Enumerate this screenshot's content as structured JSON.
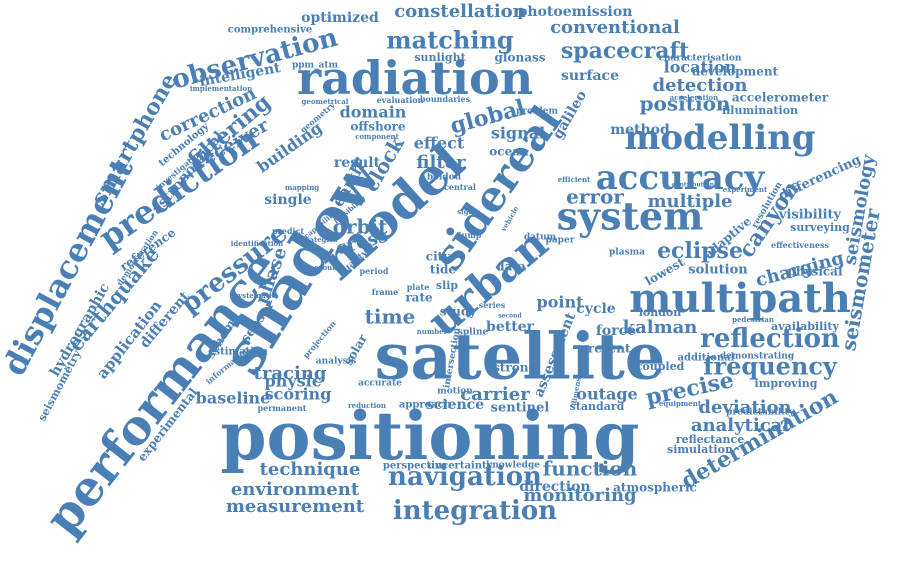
{
  "colors": {
    "primary": "#4a7fb5",
    "secondary": "#5b8cc0",
    "background": "#ffffff"
  },
  "words": [
    {
      "text": "positioning",
      "color": "#4a7fb5"
    },
    {
      "text": "satellite",
      "color": "#4a7fb5"
    },
    {
      "text": "shadow",
      "color": "#4a7fb5"
    },
    {
      "text": "performance",
      "color": "#4a7fb5"
    },
    {
      "text": "model",
      "color": "#4a7fb5"
    },
    {
      "text": "radiation",
      "color": "#4a7fb5"
    },
    {
      "text": "urban",
      "color": "#4a7fb5"
    },
    {
      "text": "sidereal",
      "color": "#4a7fb5"
    },
    {
      "text": "multipath",
      "color": "#4a7fb5"
    },
    {
      "text": "system",
      "color": "#4a7fb5"
    },
    {
      "text": "displacement",
      "color": "#4a7fb5"
    },
    {
      "text": "prediction",
      "color": "#4a7fb5"
    },
    {
      "text": "modelling",
      "color": "#4a7fb5"
    },
    {
      "text": "accuracy",
      "color": "#4a7fb5"
    },
    {
      "text": "navigation",
      "color": "#4a7fb5"
    },
    {
      "text": "integration",
      "color": "#4a7fb5"
    },
    {
      "text": "observation",
      "color": "#4a7fb5"
    },
    {
      "text": "matching",
      "color": "#4a7fb5"
    },
    {
      "text": "spacecraft",
      "color": "#4a7fb5"
    },
    {
      "text": "pressure",
      "color": "#4a7fb5"
    },
    {
      "text": "reflection",
      "color": "#4a7fb5"
    },
    {
      "text": "frequency",
      "color": "#4a7fb5"
    },
    {
      "text": "smartphone",
      "color": "#4a7fb5"
    },
    {
      "text": "filtering",
      "color": "#4a7fb5"
    },
    {
      "text": "constellation",
      "color": "#4a7fb5"
    },
    {
      "text": "conventional",
      "color": "#4a7fb5"
    },
    {
      "text": "seismometer",
      "color": "#4a7fb5"
    },
    {
      "text": "earthquake",
      "color": "#4a7fb5"
    },
    {
      "text": "canyon",
      "color": "#4a7fb5"
    },
    {
      "text": "eclipse",
      "color": "#4a7fb5"
    },
    {
      "text": "precise",
      "color": "#4a7fb5"
    },
    {
      "text": "determination",
      "color": "#4a7fb5"
    },
    {
      "text": "measurement",
      "color": "#4a7fb5"
    },
    {
      "text": "environment",
      "color": "#4a7fb5"
    },
    {
      "text": "technique",
      "color": "#4a7fb5"
    },
    {
      "text": "function",
      "color": "#4a7fb5"
    },
    {
      "text": "monitoring",
      "color": "#4a7fb5"
    },
    {
      "text": "deviation",
      "color": "#4a7fb5"
    },
    {
      "text": "analytical",
      "color": "#4a7fb5"
    },
    {
      "text": "kalman",
      "color": "#4a7fb5"
    },
    {
      "text": "position",
      "color": "#4a7fb5"
    },
    {
      "text": "detection",
      "color": "#4a7fb5"
    },
    {
      "text": "location",
      "color": "#4a7fb5"
    },
    {
      "text": "error",
      "color": "#4a7fb5"
    },
    {
      "text": "multiple",
      "color": "#4a7fb5"
    },
    {
      "text": "global",
      "color": "#4a7fb5"
    },
    {
      "text": "clock",
      "color": "#4a7fb5"
    },
    {
      "text": "orbit",
      "color": "#4a7fb5"
    },
    {
      "text": "time",
      "color": "#4a7fb5"
    },
    {
      "text": "cross",
      "color": "#4a7fb5"
    },
    {
      "text": "correction",
      "color": "#4a7fb5"
    },
    {
      "text": "receiver",
      "color": "#4a7fb5"
    },
    {
      "text": "building",
      "color": "#4a7fb5"
    },
    {
      "text": "phase",
      "color": "#4a7fb5"
    },
    {
      "text": "tracing",
      "color": "#4a7fb5"
    },
    {
      "text": "scoring",
      "color": "#4a7fb5"
    },
    {
      "text": "baseline",
      "color": "#4a7fb5"
    },
    {
      "text": "physic",
      "color": "#4a7fb5"
    },
    {
      "text": "charging",
      "color": "#4a7fb5"
    },
    {
      "text": "seismology",
      "color": "#4a7fb5"
    },
    {
      "text": "point",
      "color": "#4a7fb5"
    },
    {
      "text": "carrier",
      "color": "#4a7fb5"
    },
    {
      "text": "outage",
      "color": "#4a7fb5"
    },
    {
      "text": "effect",
      "color": "#4a7fb5"
    },
    {
      "text": "filter",
      "color": "#4a7fb5"
    },
    {
      "text": "signal",
      "color": "#4a7fb5"
    },
    {
      "text": "domain",
      "color": "#4a7fb5"
    },
    {
      "text": "result",
      "color": "#4a7fb5"
    },
    {
      "text": "surface",
      "color": "#4a7fb5"
    },
    {
      "text": "method",
      "color": "#4a7fb5"
    },
    {
      "text": "intelligent",
      "color": "#4a7fb5"
    },
    {
      "text": "optimized",
      "color": "#4a7fb5"
    },
    {
      "text": "photoemission",
      "color": "#4a7fb5"
    },
    {
      "text": "comprehensive",
      "color": "#4a7fb5"
    },
    {
      "text": "sunlight",
      "color": "#4a7fb5"
    },
    {
      "text": "glonass",
      "color": "#4a7fb5"
    },
    {
      "text": "galileo",
      "color": "#4a7fb5"
    },
    {
      "text": "development",
      "color": "#4a7fb5"
    },
    {
      "text": "characterisation",
      "color": "#4a7fb5"
    },
    {
      "text": "accelerometer",
      "color": "#4a7fb5"
    },
    {
      "text": "illumination",
      "color": "#4a7fb5"
    },
    {
      "text": "differencing",
      "color": "#4a7fb5"
    },
    {
      "text": "visibility",
      "color": "#4a7fb5"
    },
    {
      "text": "surveying",
      "color": "#4a7fb5"
    },
    {
      "text": "physical",
      "color": "#4a7fb5"
    },
    {
      "text": "availability",
      "color": "#4a7fb5"
    },
    {
      "text": "improving",
      "color": "#4a7fb5"
    },
    {
      "text": "simulation",
      "color": "#4a7fb5"
    },
    {
      "text": "reflectance",
      "color": "#4a7fb5"
    },
    {
      "text": "solution",
      "color": "#4a7fb5"
    },
    {
      "text": "lowest",
      "color": "#4a7fb5"
    },
    {
      "text": "adaptive",
      "color": "#4a7fb5"
    },
    {
      "text": "london",
      "color": "#4a7fb5"
    },
    {
      "text": "hydrographic",
      "color": "#4a7fb5"
    },
    {
      "text": "seismometry",
      "color": "#4a7fb5"
    },
    {
      "text": "application",
      "color": "#4a7fb5"
    },
    {
      "text": "different",
      "color": "#4a7fb5"
    },
    {
      "text": "experimental",
      "color": "#4a7fb5"
    },
    {
      "text": "astronomical",
      "color": "#4a7fb5"
    },
    {
      "text": "technology",
      "color": "#4a7fb5"
    },
    {
      "text": "reference",
      "color": "#4a7fb5"
    },
    {
      "text": "science",
      "color": "#4a7fb5"
    },
    {
      "text": "sentinel",
      "color": "#4a7fb5"
    },
    {
      "text": "standard",
      "color": "#4a7fb5"
    },
    {
      "text": "atmospheric",
      "color": "#4a7fb5"
    },
    {
      "text": "direction",
      "color": "#4a7fb5"
    },
    {
      "text": "perspective",
      "color": "#4a7fb5"
    },
    {
      "text": "uncertainty",
      "color": "#4a7fb5"
    },
    {
      "text": "knowledge",
      "color": "#4a7fb5"
    },
    {
      "text": "assessment",
      "color": "#4a7fb5"
    },
    {
      "text": "coupled",
      "color": "#4a7fb5"
    },
    {
      "text": "additional",
      "color": "#4a7fb5"
    },
    {
      "text": "demonstrating",
      "color": "#4a7fb5"
    },
    {
      "text": "predictability",
      "color": "#4a7fb5"
    },
    {
      "text": "force",
      "color": "#4a7fb5"
    },
    {
      "text": "cycle",
      "color": "#4a7fb5"
    },
    {
      "text": "data",
      "color": "#4a7fb5"
    },
    {
      "text": "strong",
      "color": "#4a7fb5"
    },
    {
      "text": "better",
      "color": "#4a7fb5"
    },
    {
      "text": "present",
      "color": "#4a7fb5"
    },
    {
      "text": "tide",
      "color": "#4a7fb5"
    },
    {
      "text": "city",
      "color": "#4a7fb5"
    },
    {
      "text": "rate",
      "color": "#4a7fb5"
    },
    {
      "text": "slip",
      "color": "#4a7fb5"
    },
    {
      "text": "study",
      "color": "#4a7fb5"
    },
    {
      "text": "earth",
      "color": "#4a7fb5"
    },
    {
      "text": "single",
      "color": "#4a7fb5"
    },
    {
      "text": "sensor",
      "color": "#4a7fb5"
    },
    {
      "text": "scheme",
      "color": "#4a7fb5"
    },
    {
      "text": "solar",
      "color": "#4a7fb5"
    },
    {
      "text": "offshore",
      "color": "#4a7fb5"
    },
    {
      "text": "ocean",
      "color": "#4a7fb5"
    },
    {
      "text": "beidou",
      "color": "#4a7fb5"
    },
    {
      "text": "problem",
      "color": "#4a7fb5"
    },
    {
      "text": "evaluation",
      "color": "#4a7fb5"
    },
    {
      "text": "boundaries",
      "color": "#4a7fb5"
    },
    {
      "text": "ppm_atm",
      "color": "#4a7fb5"
    },
    {
      "text": "implementation",
      "color": "#4a7fb5"
    },
    {
      "text": "geometrical",
      "color": "#4a7fb5"
    },
    {
      "text": "geometry",
      "color": "#4a7fb5"
    },
    {
      "text": "component",
      "color": "#4a7fb5"
    },
    {
      "text": "investigation",
      "color": "#4a7fb5"
    },
    {
      "text": "mapping",
      "color": "#4a7fb5"
    },
    {
      "text": "predict",
      "color": "#4a7fb5"
    },
    {
      "text": "quality",
      "color": "#4a7fb5"
    },
    {
      "text": "strategies",
      "color": "#4a7fb5"
    },
    {
      "text": "identification",
      "color": "#4a7fb5"
    },
    {
      "text": "account",
      "color": "#4a7fb5"
    },
    {
      "text": "period",
      "color": "#4a7fb5"
    },
    {
      "text": "frame",
      "color": "#4a7fb5"
    },
    {
      "text": "plate",
      "color": "#4a7fb5"
    },
    {
      "text": "systematic",
      "color": "#4a7fb5"
    },
    {
      "text": "estimation",
      "color": "#4a7fb5"
    },
    {
      "text": "information",
      "color": "#4a7fb5"
    },
    {
      "text": "projection",
      "color": "#4a7fb5"
    },
    {
      "text": "analysis",
      "color": "#4a7fb5"
    },
    {
      "text": "permanent",
      "color": "#4a7fb5"
    },
    {
      "text": "accurate",
      "color": "#4a7fb5"
    },
    {
      "text": "reduction",
      "color": "#4a7fb5"
    },
    {
      "text": "approach",
      "color": "#4a7fb5"
    },
    {
      "text": "motion",
      "color": "#4a7fb5"
    },
    {
      "text": "intersection",
      "color": "#4a7fb5"
    },
    {
      "text": "spline",
      "color": "#4a7fb5"
    },
    {
      "text": "series",
      "color": "#4a7fb5"
    },
    {
      "text": "number",
      "color": "#4a7fb5"
    },
    {
      "text": "vehicle",
      "color": "#4a7fb5"
    },
    {
      "text": "central",
      "color": "#4a7fb5"
    },
    {
      "text": "sight",
      "color": "#4a7fb5"
    },
    {
      "text": "jump",
      "color": "#4a7fb5"
    },
    {
      "text": "effectiveness",
      "color": "#4a7fb5"
    },
    {
      "text": "plasma",
      "color": "#4a7fb5"
    },
    {
      "text": "resolution",
      "color": "#4a7fb5"
    },
    {
      "text": "experiment",
      "color": "#4a7fb5"
    },
    {
      "text": "contribution",
      "color": "#4a7fb5"
    },
    {
      "text": "pedestrian",
      "color": "#4a7fb5"
    },
    {
      "text": "equipment",
      "color": "#4a7fb5"
    },
    {
      "text": "acceleration",
      "color": "#4a7fb5"
    },
    {
      "text": "dimensional",
      "color": "#4a7fb5"
    },
    {
      "text": "demonstration",
      "color": "#4a7fb5"
    },
    {
      "text": "datum",
      "color": "#4a7fb5"
    },
    {
      "text": "efficient",
      "color": "#4a7fb5"
    },
    {
      "text": "paper",
      "color": "#4a7fb5"
    },
    {
      "text": "second",
      "color": "#4a7fb5"
    },
    {
      "text": "feasibility",
      "color": "#4a7fb5"
    },
    {
      "text": "capability",
      "color": "#4a7fb5"
    }
  ]
}
